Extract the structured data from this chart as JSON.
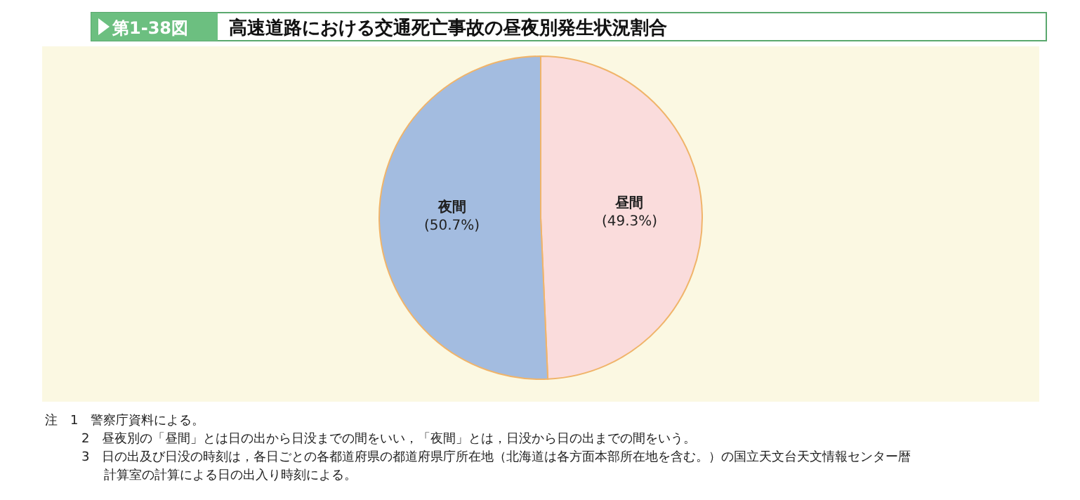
{
  "chart_data": {
    "type": "pie",
    "subtitle": "第1-38図",
    "title": "高速道路における交通死亡事故の昼夜別発生状況割合",
    "categories": [
      "昼間",
      "夜間"
    ],
    "values": [
      49.3,
      50.7
    ],
    "value_labels": [
      "(49.3%)",
      "(50.7%)"
    ],
    "colors": [
      "#fadcdc",
      "#a3bce0"
    ],
    "annotations": [
      "注　1　警察庁資料による。",
      "2　昼夜別の「昼間」とは日の出から日没までの間をいい，「夜間」とは，日没から日の出までの間をいう。",
      "3　日の出及び日没の時刻は，各日ごとの各都道府県の都道府県庁所在地（北海道は各方面本部所在地を含む。）の国立天文台天文情報センター暦計算室の計算による日の出入り時刻による。"
    ]
  }
}
